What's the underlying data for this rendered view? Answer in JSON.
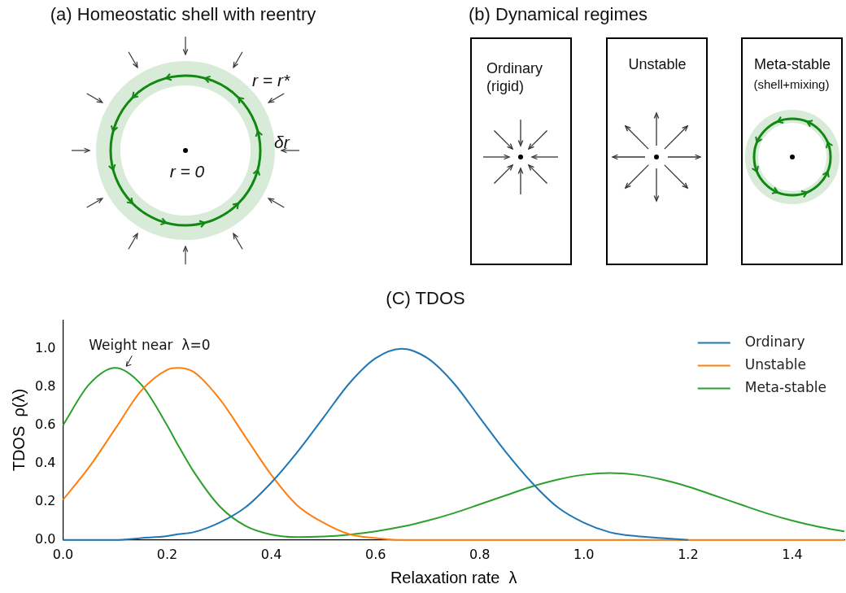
{
  "chart_data": {
    "type": "line",
    "title": "(C) TDOS",
    "xlabel": "Relaxation rate  λ",
    "ylabel": "TDOS  ρ(λ)",
    "xlim": [
      0,
      1.5
    ],
    "ylim": [
      0,
      1.15
    ],
    "xticks": [
      {
        "value": 0,
        "label": "0.0"
      },
      {
        "value": 0.2,
        "label": "0.2"
      },
      {
        "value": 0.4,
        "label": "0.4"
      },
      {
        "value": 0.6,
        "label": "0.6"
      },
      {
        "value": 0.8,
        "label": "0.8"
      },
      {
        "value": 1,
        "label": "1.0"
      },
      {
        "value": 1.2,
        "label": "1.2"
      },
      {
        "value": 1.4,
        "label": "1.4"
      }
    ],
    "yticks": [
      {
        "value": 0,
        "label": "0.0"
      },
      {
        "value": 0.2,
        "label": "0.2"
      },
      {
        "value": 0.4,
        "label": "0.4"
      },
      {
        "value": 0.6,
        "label": "0.6"
      },
      {
        "value": 0.8,
        "label": "0.8"
      },
      {
        "value": 1,
        "label": "1.0"
      }
    ],
    "legend": "top right",
    "x": [
      0,
      0.05,
      0.1,
      0.15,
      0.2,
      0.22,
      0.25,
      0.3,
      0.35,
      0.4,
      0.45,
      0.5,
      0.55,
      0.6,
      0.65,
      0.7,
      0.75,
      0.8,
      0.85,
      0.9,
      0.95,
      1,
      1.05,
      1.1,
      1.15,
      1.2,
      1.25,
      1.3,
      1.35,
      1.4,
      1.45,
      1.5
    ],
    "series": [
      {
        "name": "Ordinary",
        "color": "#1f77b4",
        "values": [
          0,
          0,
          0,
          0.01,
          0.02,
          0.03,
          0.04,
          0.09,
          0.17,
          0.3,
          0.46,
          0.64,
          0.82,
          0.95,
          1,
          0.95,
          0.82,
          0.64,
          0.46,
          0.3,
          0.17,
          0.09,
          0.04,
          0.02,
          0.01,
          0,
          null,
          null,
          null,
          null,
          null,
          null
        ]
      },
      {
        "name": "Unstable",
        "color": "#ff7f0e",
        "values": [
          0.21,
          0.38,
          0.58,
          0.78,
          0.89,
          0.9,
          0.88,
          0.74,
          0.54,
          0.34,
          0.18,
          0.09,
          0.03,
          0.01,
          0,
          0,
          0,
          0,
          0,
          0,
          0,
          0,
          0,
          0,
          0,
          0,
          0,
          0,
          0,
          0,
          0,
          0
        ]
      },
      {
        "name": "Meta-stable",
        "color": "#2ca02c",
        "values": [
          0.6,
          0.813,
          0.9,
          0.813,
          0.599,
          0.5,
          0.361,
          0.178,
          0.074,
          0.028,
          0.015,
          0.018,
          0.028,
          0.045,
          0.069,
          0.101,
          0.14,
          0.186,
          0.233,
          0.279,
          0.316,
          0.341,
          0.35,
          0.341,
          0.316,
          0.279,
          0.233,
          0.186,
          0.14,
          0.101,
          0.069,
          0.045
        ]
      }
    ],
    "annotations": [
      {
        "text": "Weight near  λ=0",
        "x": 0.12,
        "y": 0.9
      },
      "(a) Homeostatic shell with reentry",
      "r = r*",
      "δr",
      "r = 0",
      "(b) Dynamical regimes",
      "Ordinary",
      "(rigid)",
      "Unstable",
      "Meta-stable",
      "(shell+mixing)"
    ]
  }
}
